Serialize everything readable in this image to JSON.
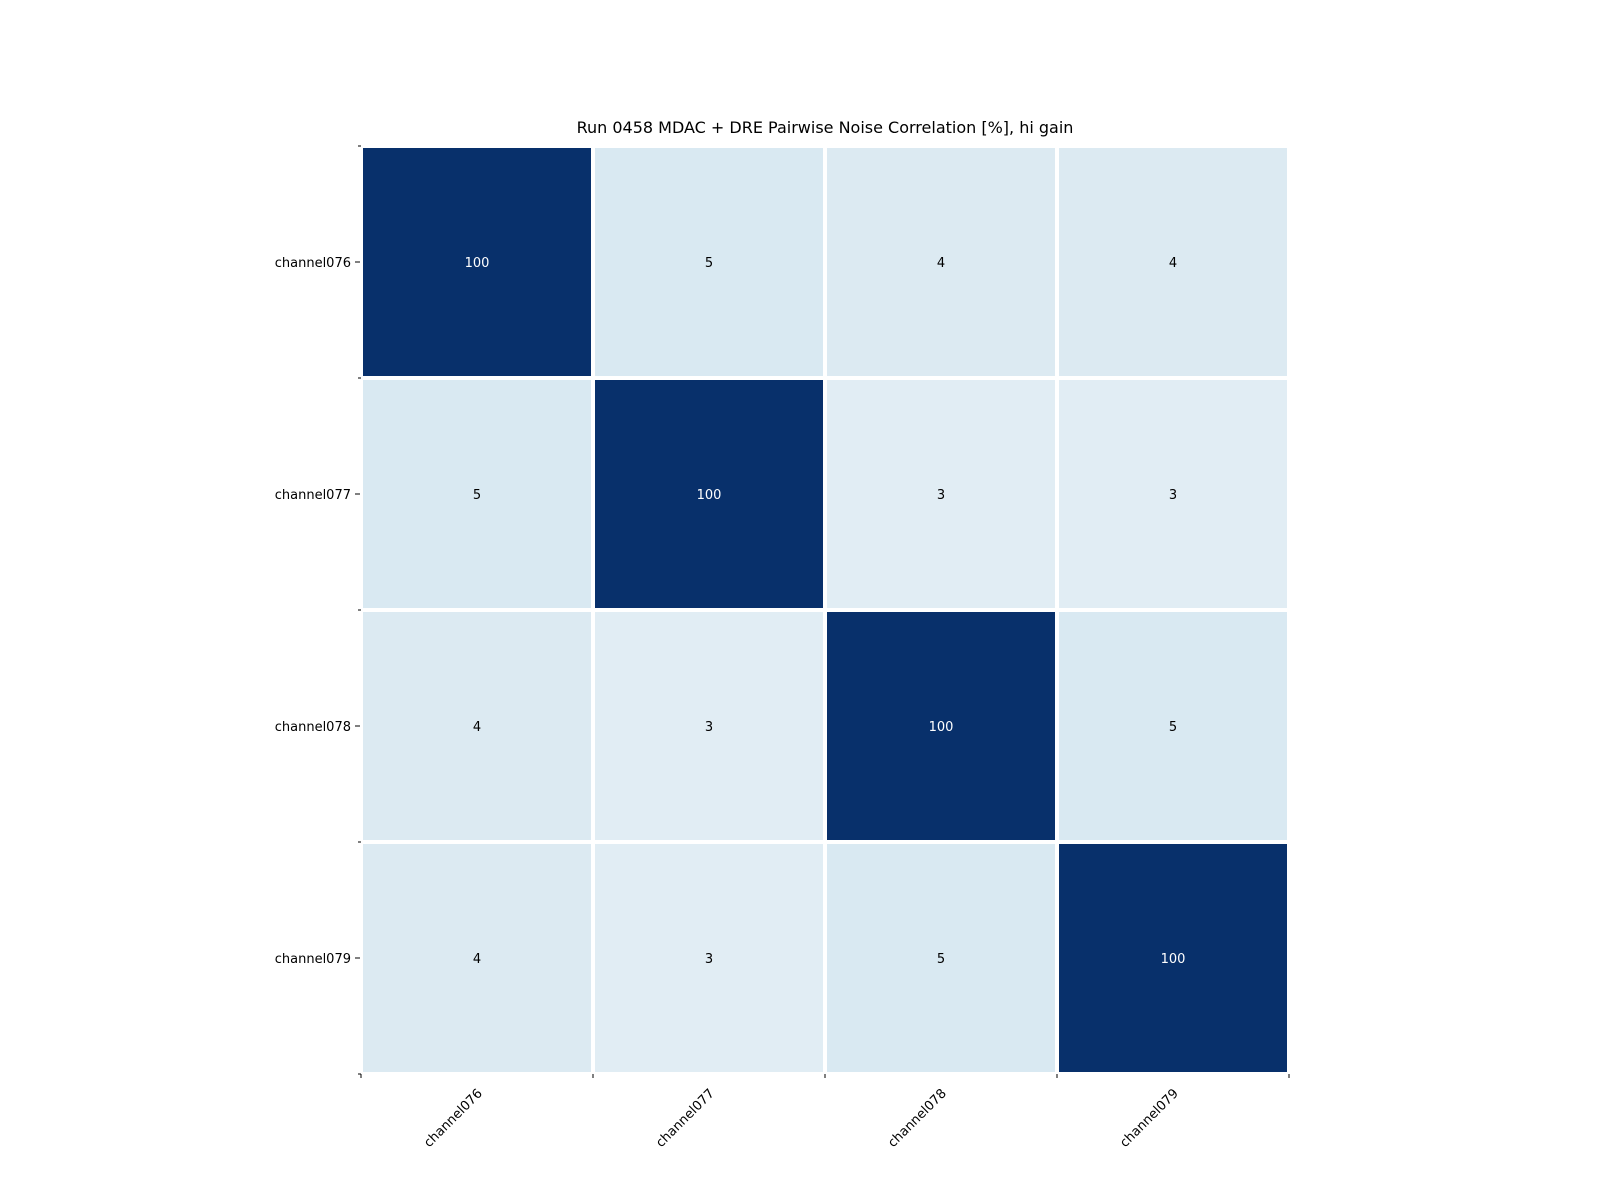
{
  "chart_data": {
    "type": "heatmap",
    "title": "Run 0458 MDAC + DRE Pairwise Noise Correlation [%], hi gain",
    "x_categories": [
      "channel076",
      "channel077",
      "channel078",
      "channel079"
    ],
    "y_categories": [
      "channel076",
      "channel077",
      "channel078",
      "channel079"
    ],
    "values": [
      [
        100,
        5,
        4,
        4
      ],
      [
        5,
        100,
        3,
        3
      ],
      [
        4,
        3,
        100,
        5
      ],
      [
        4,
        3,
        5,
        100
      ]
    ],
    "colormap": "Blues",
    "colors": {
      "high": "#08306b",
      "cell_5": "#d9e9f2",
      "cell_4": "#dceaf2",
      "cell_3": "#e1edf4",
      "text_dark_bg": "#ffffff",
      "text_light_bg": "#000000",
      "grid_line": "#ffffff"
    },
    "xlabel": "",
    "ylabel": "",
    "legend": "none"
  }
}
